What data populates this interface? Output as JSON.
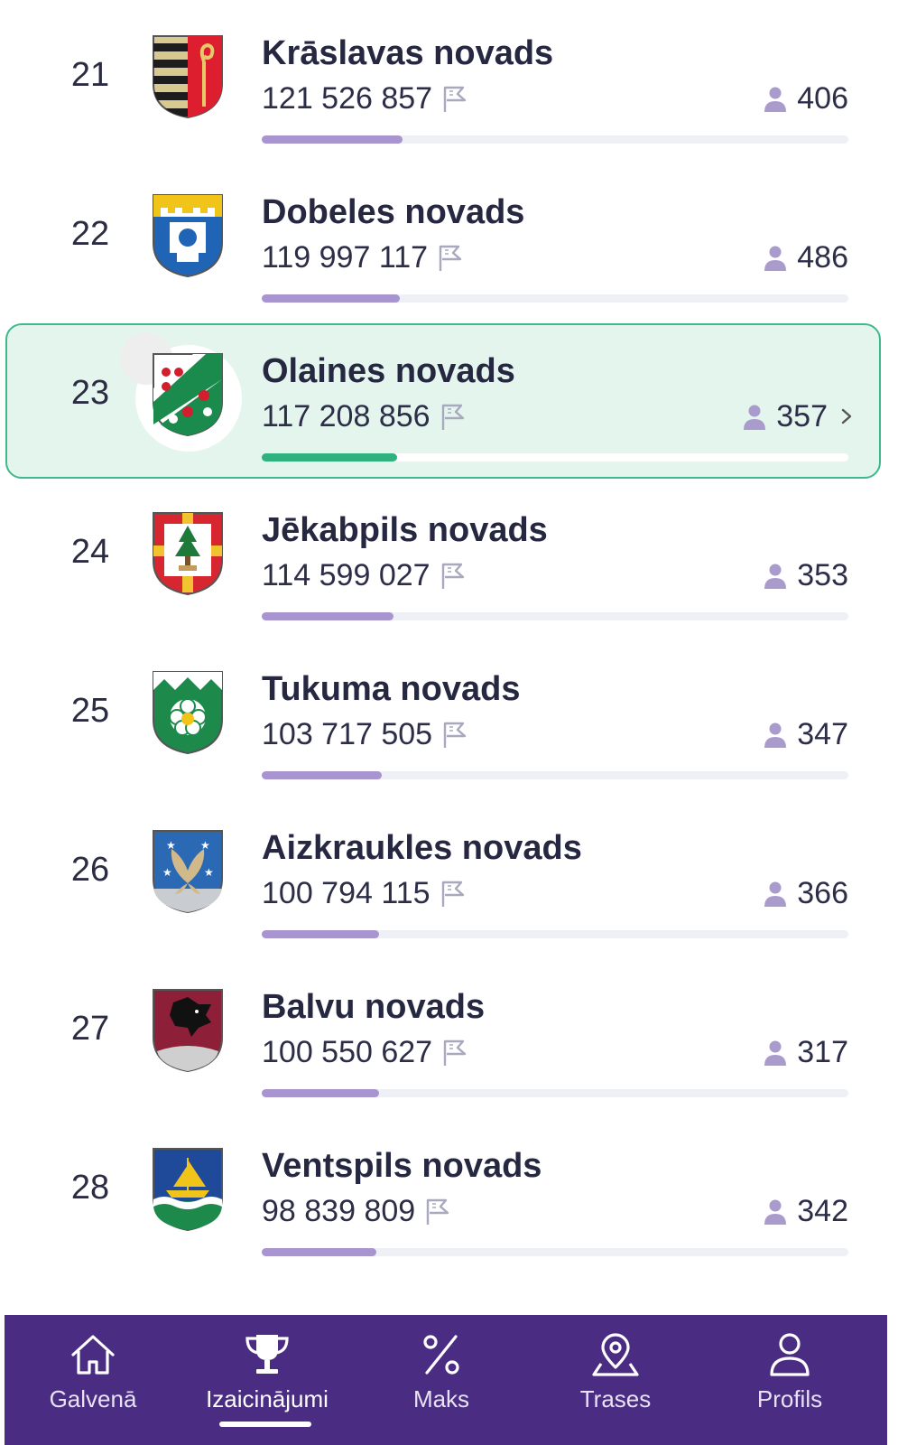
{
  "rows": [
    {
      "rank": "21",
      "name": "Krāslavas novads",
      "score": "121 526 857",
      "members": "406",
      "progress": 0.24,
      "crest": "kraslava-crest"
    },
    {
      "rank": "22",
      "name": "Dobeles novads",
      "score": "119 997 117",
      "members": "486",
      "progress": 0.235,
      "crest": "dobele-crest"
    },
    {
      "rank": "23",
      "name": "Olaines novads",
      "score": "117 208 856",
      "members": "357",
      "progress": 0.23,
      "crest": "olaine-crest",
      "highlight": true
    },
    {
      "rank": "24",
      "name": "Jēkabpils novads",
      "score": "114 599 027",
      "members": "353",
      "progress": 0.225,
      "crest": "jekabpils-crest"
    },
    {
      "rank": "25",
      "name": "Tukuma novads",
      "score": "103 717 505",
      "members": "347",
      "progress": 0.205,
      "crest": "tukums-crest"
    },
    {
      "rank": "26",
      "name": "Aizkraukles novads",
      "score": "100 794 115",
      "members": "366",
      "progress": 0.2,
      "crest": "aizkraukle-crest"
    },
    {
      "rank": "27",
      "name": "Balvu novads",
      "score": "100 550 627",
      "members": "317",
      "progress": 0.2,
      "crest": "balvi-crest"
    },
    {
      "rank": "28",
      "name": "Ventspils novads",
      "score": "98 839 809",
      "members": "342",
      "progress": 0.195,
      "crest": "ventspils-crest"
    }
  ],
  "tabs": [
    {
      "label": "Galvenā",
      "icon": "home-icon"
    },
    {
      "label": "Izaicinājumi",
      "icon": "trophy-icon",
      "active": true
    },
    {
      "label": "Maks",
      "icon": "percent-icon"
    },
    {
      "label": "Trases",
      "icon": "map-pin-icon"
    },
    {
      "label": "Profils",
      "icon": "user-icon"
    }
  ],
  "colors": {
    "tabbar": "#4a2d82",
    "progress": "#a894cf",
    "highlight_progress": "#30b27f",
    "highlight_bg": "#e4f5ee",
    "highlight_border": "#3fb88c"
  }
}
